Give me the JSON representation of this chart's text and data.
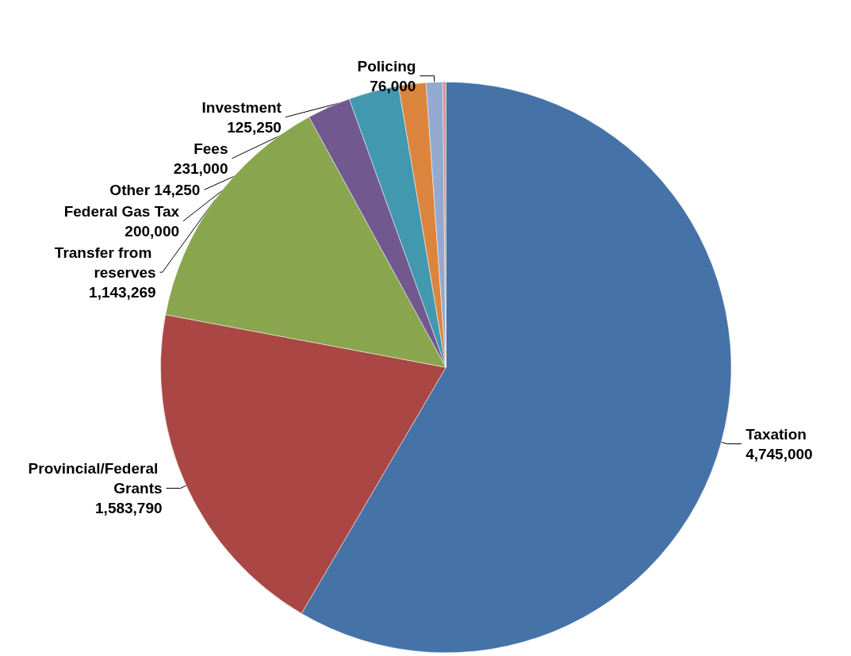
{
  "chart_data": {
    "type": "pie",
    "categories": [
      "Taxation",
      "Provincial/Federal Grants",
      "Transfer from reserves",
      "Federal Gas Tax",
      "Fees",
      "Investment",
      "Policing",
      "Other"
    ],
    "values": [
      4745000,
      1583790,
      1143269,
      200000,
      231000,
      125250,
      76000,
      14250
    ],
    "value_labels": [
      "4,745,000",
      "1,583,790",
      "1,143,269",
      "200,000",
      "231,000",
      "125,250",
      "76,000",
      "14,250"
    ],
    "colors": [
      "#4572a7",
      "#aa4643",
      "#89a54e",
      "#71588f",
      "#4198af",
      "#db843d",
      "#93a9cf",
      "#d19392"
    ]
  }
}
